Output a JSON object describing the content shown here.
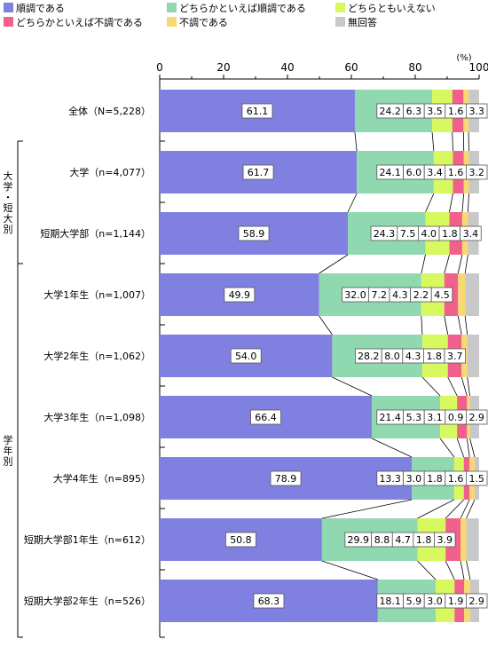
{
  "legend": [
    {
      "label": "順調である",
      "color": "#8080e0"
    },
    {
      "label": "どちらかといえば順調である",
      "color": "#90d8b0"
    },
    {
      "label": "どちらともいえない",
      "color": "#d8f860"
    },
    {
      "label": "どちらかといえば不調である",
      "color": "#f0608a"
    },
    {
      "label": "不調である",
      "color": "#f8d870"
    },
    {
      "label": "無回答",
      "color": "#c8c8c8"
    }
  ],
  "chart_data": {
    "type": "bar",
    "orientation": "horizontal",
    "stacked": true,
    "unit": "(%)",
    "xlim": [
      0,
      100
    ],
    "xticks": [
      0,
      20,
      40,
      60,
      80,
      100
    ],
    "groups": [
      {
        "label": "大学・短大別",
        "rows": [
          1,
          2
        ]
      },
      {
        "label": "学年別",
        "rows": [
          3,
          4,
          5,
          6,
          7,
          8
        ]
      }
    ],
    "categories": [
      "全体（N=5,228）",
      "大学（n=4,077）",
      "短期大学部（n=1,144）",
      "大学1年生（n=1,007）",
      "大学2年生（n=1,062）",
      "大学3年生（n=1,098）",
      "大学4年生（n=895）",
      "短期大学部1年生（n=612）",
      "短期大学部2年生（n=526）"
    ],
    "series": [
      {
        "name": "順調である",
        "color": "#8080e0",
        "values": [
          61.1,
          61.7,
          58.9,
          49.9,
          54.0,
          66.4,
          78.9,
          50.8,
          68.3
        ]
      },
      {
        "name": "どちらかといえば順調である",
        "color": "#90d8b0",
        "values": [
          24.2,
          24.1,
          24.3,
          32.0,
          28.2,
          21.4,
          13.3,
          29.9,
          18.1
        ]
      },
      {
        "name": "どちらともいえない",
        "color": "#d8f860",
        "values": [
          6.3,
          6.0,
          7.5,
          7.2,
          8.0,
          5.3,
          3.0,
          8.8,
          5.9
        ]
      },
      {
        "name": "どちらかといえば不調である",
        "color": "#f0608a",
        "values": [
          3.5,
          3.4,
          4.0,
          4.3,
          4.3,
          3.1,
          1.8,
          4.7,
          3.0
        ]
      },
      {
        "name": "不調である",
        "color": "#f8d870",
        "values": [
          1.6,
          1.6,
          1.8,
          2.2,
          1.8,
          0.9,
          1.6,
          1.8,
          1.9
        ]
      },
      {
        "name": "無回答",
        "color": "#c8c8c8",
        "values": [
          3.3,
          3.2,
          3.4,
          4.5,
          3.7,
          2.9,
          1.5,
          3.9,
          2.9
        ]
      }
    ]
  }
}
